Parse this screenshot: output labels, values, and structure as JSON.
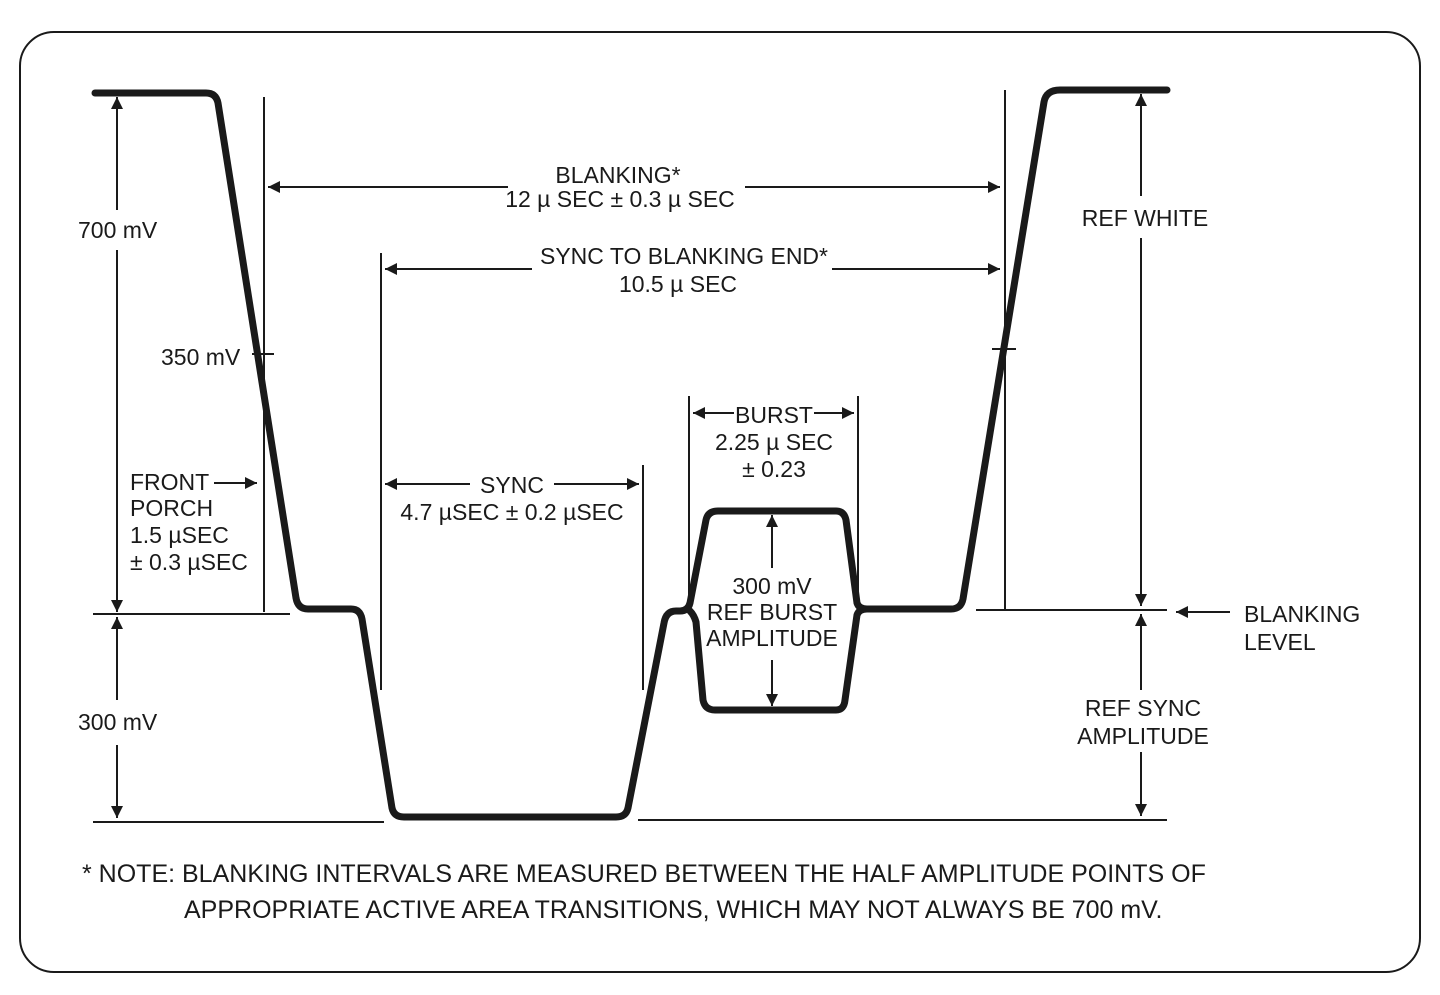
{
  "labels": {
    "mv700": "700 mV",
    "mv350": "350 mV",
    "mv300": "300 mV",
    "blanking_title": "BLANKING*",
    "blanking_value": "12 µ SEC ± 0.3 µ SEC",
    "sync_to_blanking_title": "SYNC TO BLANKING END*",
    "sync_to_blanking_value": "10.5 µ SEC",
    "burst_title": "BURST",
    "burst_value": "2.25 µ SEC",
    "burst_tol": "± 0.23",
    "burst_amp_1": "300 mV",
    "burst_amp_2": "REF BURST",
    "burst_amp_3": "AMPLITUDE",
    "sync_title": "SYNC",
    "sync_value": "4.7 µSEC ± 0.2 µSEC",
    "front_porch_1": "FRONT",
    "front_porch_2": "PORCH",
    "front_porch_3": "1.5 µSEC",
    "front_porch_4": "± 0.3 µSEC",
    "ref_white": "REF WHITE",
    "blanking_level_1": "BLANKING",
    "blanking_level_2": "LEVEL",
    "ref_sync_1": "REF SYNC",
    "ref_sync_2": "AMPLITUDE"
  },
  "note": {
    "line1": "* NOTE: BLANKING INTERVALS ARE MEASURED BETWEEN THE HALF AMPLITUDE POINTS OF",
    "line2": "APPROPRIATE ACTIVE AREA TRANSITIONS, WHICH MAY NOT ALWAYS BE 700 mV."
  }
}
